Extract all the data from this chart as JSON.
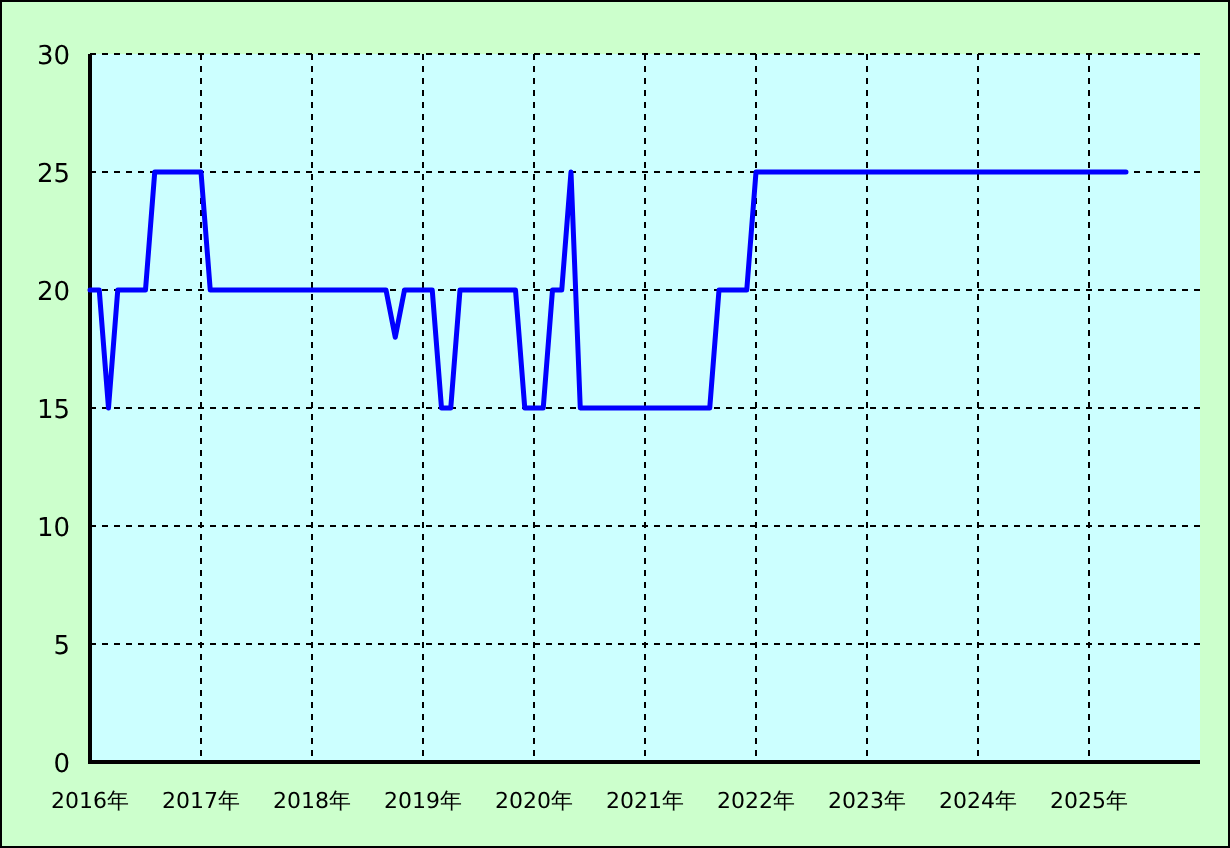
{
  "chart_data": {
    "type": "line",
    "x": [
      "2016-01",
      "2016-02",
      "2016-03",
      "2016-04",
      "2016-07",
      "2016-08",
      "2017-01",
      "2017-02",
      "2018-09",
      "2018-10",
      "2018-11",
      "2019-02",
      "2019-03",
      "2019-04",
      "2019-05",
      "2019-11",
      "2019-12",
      "2020-02",
      "2020-03",
      "2020-04",
      "2020-05",
      "2020-06",
      "2021-08",
      "2021-09",
      "2021-12",
      "2022-01",
      "2025-05"
    ],
    "series": [
      {
        "color": "#0000ff",
        "values": [
          20,
          20,
          15,
          20,
          20,
          25,
          25,
          20,
          20,
          18,
          20,
          20,
          15,
          15,
          20,
          20,
          15,
          15,
          20,
          20,
          25,
          15,
          15,
          20,
          20,
          25,
          25
        ]
      }
    ],
    "xlim": [
      "2016-01",
      "2026-01"
    ],
    "xticks": [
      {
        "value": "2016-01",
        "label": "2016年"
      },
      {
        "value": "2017-01",
        "label": "2017年"
      },
      {
        "value": "2018-01",
        "label": "2018年"
      },
      {
        "value": "2019-01",
        "label": "2019年"
      },
      {
        "value": "2020-01",
        "label": "2020年"
      },
      {
        "value": "2021-01",
        "label": "2021年"
      },
      {
        "value": "2022-01",
        "label": "2022年"
      },
      {
        "value": "2023-01",
        "label": "2023年"
      },
      {
        "value": "2024-01",
        "label": "2024年"
      },
      {
        "value": "2025-01",
        "label": "2025年"
      }
    ],
    "ylim": [
      0,
      30
    ],
    "yticks": [
      0,
      5,
      10,
      15,
      20,
      25,
      30
    ],
    "grid": true,
    "marker": "none",
    "line_style": "solid"
  }
}
